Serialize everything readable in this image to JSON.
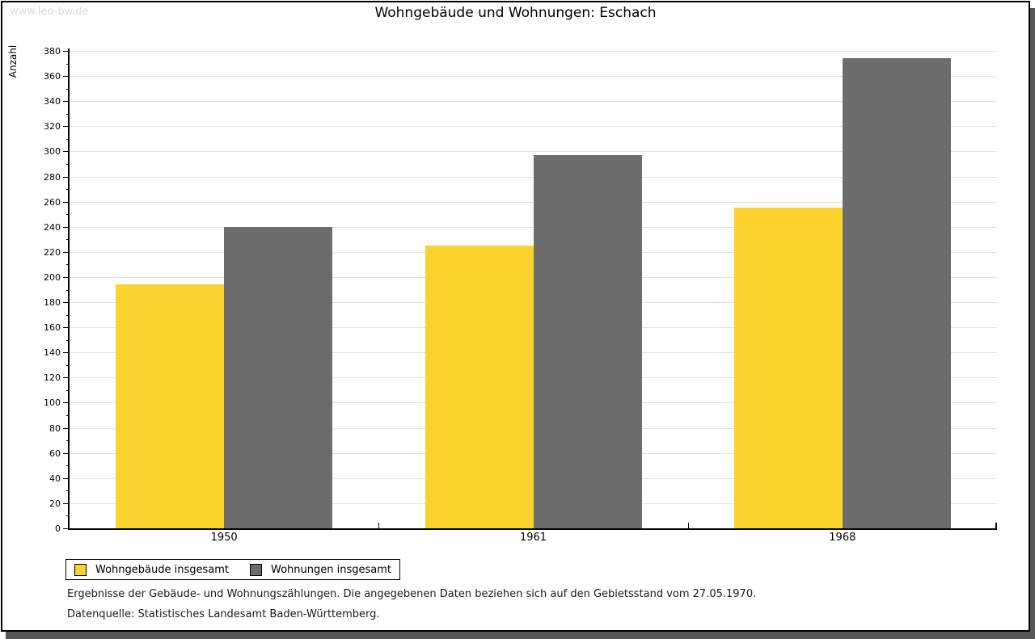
{
  "watermark": "www.leo-bw.de",
  "title": "Wohngebäude und Wohnungen: Eschach",
  "chart_data": {
    "type": "bar",
    "title": "Wohngebäude und Wohnungen: Eschach",
    "categories": [
      "1950",
      "1961",
      "1968"
    ],
    "series": [
      {
        "name": "Wohngebäude insgesamt",
        "color": "#FCD32D",
        "values": [
          194,
          225,
          255
        ]
      },
      {
        "name": "Wohnungen insgesamt",
        "color": "#6C6C6C",
        "values": [
          240,
          297,
          374
        ]
      }
    ],
    "xlabel": "",
    "ylabel": "Anzahl",
    "ylim": [
      0,
      380
    ],
    "ytick_step": 20,
    "yminor_step": 10,
    "grid": true,
    "gridline_color": "#e2e2e2",
    "legend_position": "bottom-left"
  },
  "footer": {
    "line1": "Ergebnisse der Gebäude- und Wohnungszählungen. Die angegebenen Daten beziehen sich auf den Gebietsstand vom 27.05.1970.",
    "line2": "Datenquelle: Statistisches Landesamt Baden-Württemberg."
  }
}
